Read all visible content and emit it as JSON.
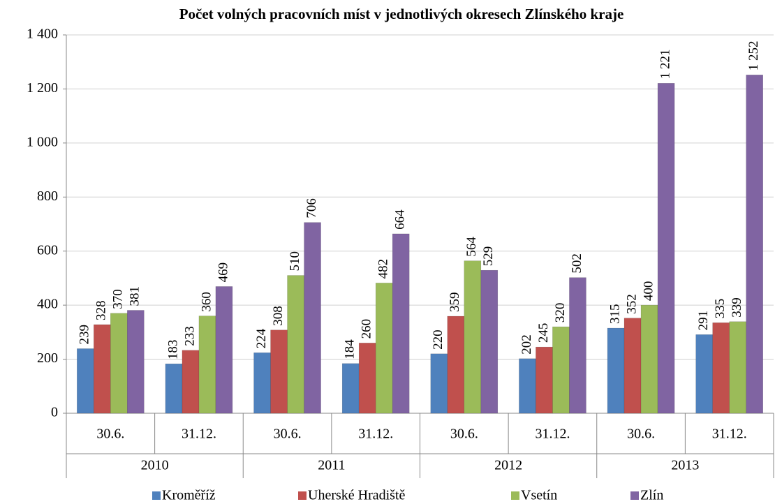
{
  "chart_data": {
    "type": "bar",
    "title": "Počet volných pracovních míst v jednotlivých okresech Zlínského kraje",
    "categories": [
      "30.6.",
      "31.12.",
      "30.6.",
      "31.12.",
      "30.6.",
      "31.12.",
      "30.6.",
      "31.12."
    ],
    "category_groups": [
      "2010",
      "2011",
      "2012",
      "2013"
    ],
    "series": [
      {
        "name": "Kroměříž",
        "color": "#4f81bd",
        "values": [
          239,
          183,
          224,
          184,
          220,
          202,
          315,
          291
        ]
      },
      {
        "name": "Uherské Hradiště",
        "color": "#c0504d",
        "values": [
          328,
          233,
          308,
          260,
          359,
          245,
          352,
          335
        ]
      },
      {
        "name": "Vsetín",
        "color": "#9bbb59",
        "values": [
          370,
          360,
          510,
          482,
          564,
          320,
          400,
          339
        ]
      },
      {
        "name": "Zlín",
        "color": "#8064a2",
        "values": [
          381,
          469,
          706,
          664,
          529,
          502,
          1221,
          1252
        ],
        "value_labels": [
          "381",
          "469",
          "706",
          "664",
          "529",
          "502",
          "1 221",
          "1 252"
        ]
      }
    ],
    "ylim": [
      0,
      1400
    ],
    "yticks": [
      0,
      200,
      400,
      600,
      800,
      {
        "value": 1000,
        "label": "1 000"
      },
      {
        "value": 1200,
        "label": "1 200"
      },
      {
        "value": 1400,
        "label": "1 400"
      }
    ],
    "grid": true,
    "legend": "bottom"
  }
}
